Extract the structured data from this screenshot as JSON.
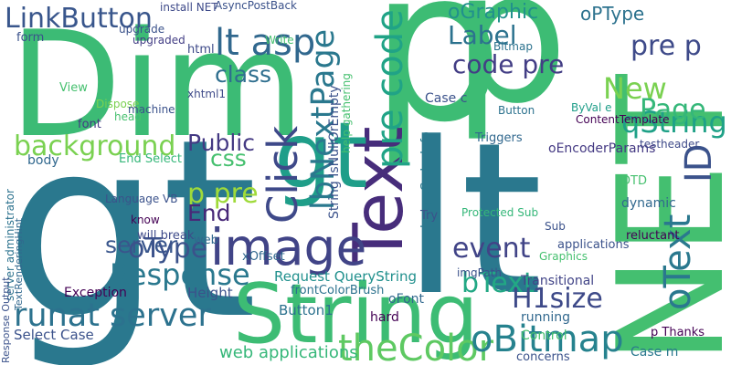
{
  "words": [
    "gt",
    "Dim",
    "p",
    "p",
    "lt",
    "NET",
    "Text",
    "String",
    "image",
    "gt",
    "LinkButton",
    "Label",
    "lt asp",
    "oGraphic",
    "oPType",
    "pre p",
    "qString",
    "ID",
    "New",
    "Page",
    "code pre",
    "pre code",
    "background",
    "class",
    "Public",
    "css",
    "p pre",
    "End",
    "server",
    "Click",
    "lbNextPage",
    "Response",
    "oType",
    "runat server",
    "theColor",
    "oBitmap",
    "bText",
    "H1size",
    "event",
    "oText",
    "web applications",
    "Request QueryString",
    "Height",
    "Button1",
    "Select Case",
    "Exception",
    "Language VB",
    "End Select",
    "body",
    "form",
    "View",
    "Dispose",
    "upgraded",
    "html",
    "ImageCodecInfo",
    "Case c",
    "Triggers",
    "Button",
    "ByVal e",
    "ContentTemplate",
    "oEncoderParams",
    "DTD",
    "testheader",
    "dynamic",
    "reluctant",
    "applications",
    "Transitional",
    "running",
    "Case m",
    "p Thanks",
    "Control",
    "concerns",
    "frontColorBrush",
    "hard",
    "oFont",
    "xOffset",
    "imgPath",
    "Graphics",
    "upgrade",
    "Write",
    "Bitmap",
    "AsyncPostBack",
    "install NET",
    "String IsNullOrEmpty",
    "help gathering",
    "Protected Sub",
    "Sub",
    "Try",
    "server administrator",
    "TextRenderingHint",
    "Response Output",
    "will break",
    "know",
    "machine",
    "font",
    "head",
    "xhtml1",
    "web"
  ]
}
